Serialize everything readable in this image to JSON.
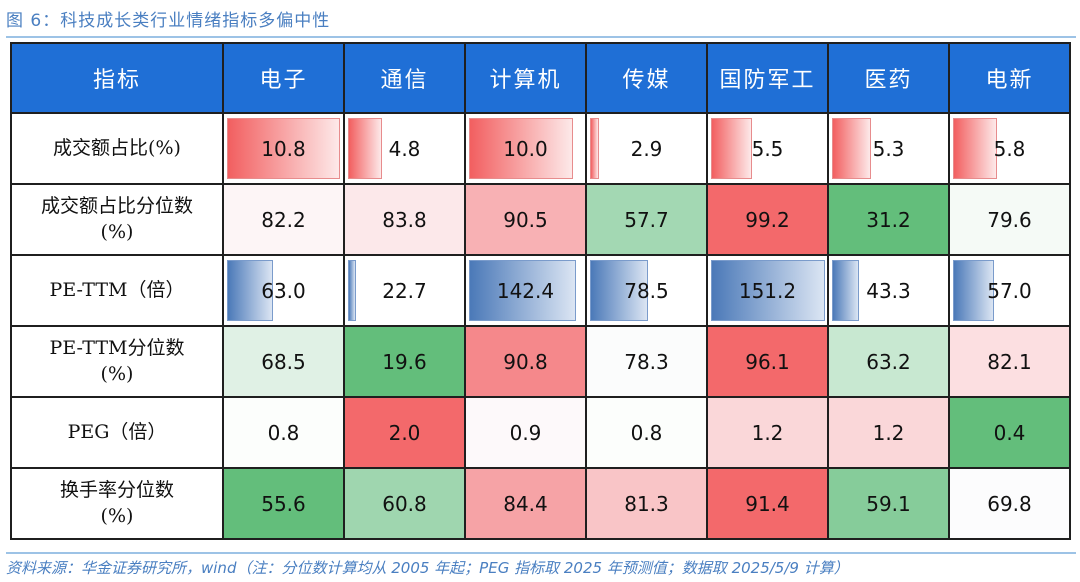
{
  "caption": "图 6：科技成长类行业情绪指标多偏中性",
  "table": {
    "header_label": "指标",
    "columns": [
      "电子",
      "通信",
      "计算机",
      "传媒",
      "国防军工",
      "医药",
      "电新"
    ],
    "rows": [
      {
        "label": "成交额占比(%)",
        "label_line2": "",
        "values": [
          "10.8",
          "4.8",
          "10.0",
          "2.9",
          "5.5",
          "5.3",
          "5.8"
        ],
        "style": "databar-red",
        "bar_fraction": [
          0.98,
          0.32,
          0.91,
          0.11,
          0.38,
          0.36,
          0.4
        ]
      },
      {
        "label": "成交额占比分位数",
        "label_line2": "(%)",
        "values": [
          "82.2",
          "83.8",
          "90.5",
          "57.7",
          "99.2",
          "31.2",
          "79.6"
        ],
        "style": "fill",
        "colors": [
          "#fdf5f6",
          "#fce8ea",
          "#f8b1b4",
          "#a3d8b3",
          "#f3696b",
          "#63be7b",
          "#f5faf6"
        ]
      },
      {
        "label": "PE-TTM（倍）",
        "label_line2": "",
        "values": [
          "63.0",
          "22.7",
          "142.4",
          "78.5",
          "151.2",
          "43.3",
          "57.0"
        ],
        "style": "databar-blue",
        "bar_fraction": [
          0.42,
          0.1,
          0.93,
          0.52,
          0.99,
          0.26,
          0.38
        ]
      },
      {
        "label": "PE-TTM分位数",
        "label_line2": "(%)",
        "values": [
          "68.5",
          "19.6",
          "90.8",
          "78.3",
          "96.1",
          "63.2",
          "82.1"
        ],
        "style": "fill",
        "colors": [
          "#e0f1e5",
          "#63be7b",
          "#f5888b",
          "#fbfcfc",
          "#f3696b",
          "#c8e8d1",
          "#fcdfe1"
        ]
      },
      {
        "label": "PEG（倍）",
        "label_line2": "",
        "values": [
          "0.8",
          "2.0",
          "0.9",
          "0.8",
          "1.2",
          "1.2",
          "0.4"
        ],
        "style": "fill",
        "colors": [
          "#fcfefc",
          "#f3696b",
          "#fdf9fa",
          "#fcfefc",
          "#fad7d9",
          "#fad7d9",
          "#63be7b"
        ]
      },
      {
        "label": "换手率分位数",
        "label_line2": "(%)",
        "values": [
          "55.6",
          "60.8",
          "84.4",
          "81.3",
          "91.4",
          "59.1",
          "69.8"
        ],
        "style": "fill",
        "colors": [
          "#63be7b",
          "#9fd6af",
          "#f6a3a6",
          "#f9c5c7",
          "#f3696b",
          "#86cc9a",
          "#fcfcfd"
        ]
      }
    ]
  },
  "footer": "资料来源：华金证券研究所，wind（注：分位数计算均从 2005 年起；PEG 指标取 2025 年预测值；数据取 2025/5/9 计算）"
}
